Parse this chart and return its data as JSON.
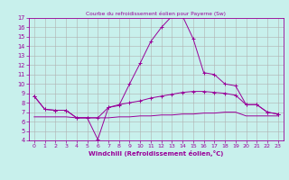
{
  "title": "Courbe du refroidissement éolien pour Payerne (Sw)",
  "xlabel": "Windchill (Refroidissement éolien,°C)",
  "background_color": "#c8f0ec",
  "grid_color": "#b0b0b0",
  "line_color": "#990099",
  "x": [
    0,
    1,
    2,
    3,
    4,
    5,
    6,
    7,
    8,
    9,
    10,
    11,
    12,
    13,
    14,
    15,
    16,
    17,
    18,
    19,
    20,
    21,
    22,
    23
  ],
  "line1": [
    8.7,
    7.3,
    7.2,
    7.2,
    6.4,
    6.4,
    4.1,
    7.5,
    7.7,
    10.0,
    12.2,
    14.5,
    16.0,
    17.2,
    17.2,
    14.8,
    11.2,
    11.0,
    10.0,
    9.8,
    7.8,
    7.8,
    7.0,
    6.8
  ],
  "line2": [
    8.7,
    7.3,
    7.2,
    7.2,
    6.4,
    6.4,
    6.4,
    7.5,
    7.8,
    8.0,
    8.2,
    8.5,
    8.7,
    8.9,
    9.1,
    9.2,
    9.2,
    9.1,
    9.0,
    8.8,
    7.8,
    7.8,
    7.0,
    6.8
  ],
  "line3": [
    6.5,
    6.5,
    6.5,
    6.5,
    6.4,
    6.4,
    6.4,
    6.4,
    6.5,
    6.5,
    6.6,
    6.6,
    6.7,
    6.7,
    6.8,
    6.8,
    6.9,
    6.9,
    7.0,
    7.0,
    6.6,
    6.6,
    6.6,
    6.6
  ],
  "ylim": [
    4,
    17
  ],
  "xlim": [
    0,
    23
  ],
  "yticks": [
    4,
    5,
    6,
    7,
    8,
    9,
    10,
    11,
    12,
    13,
    14,
    15,
    16,
    17
  ],
  "xticks": [
    0,
    1,
    2,
    3,
    4,
    5,
    6,
    7,
    8,
    9,
    10,
    11,
    12,
    13,
    14,
    15,
    16,
    17,
    18,
    19,
    20,
    21,
    22,
    23
  ]
}
